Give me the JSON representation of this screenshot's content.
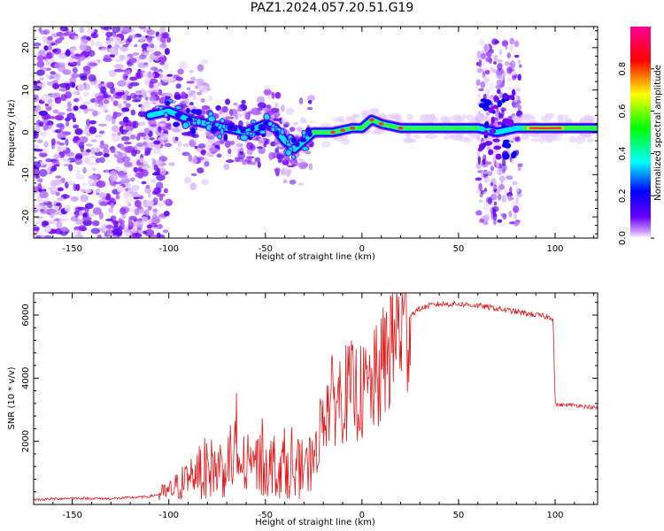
{
  "page": {
    "title": "PAZ1.2024.057.20.51.G19"
  },
  "colors": {
    "snr_line": "#e41a1c",
    "colormap": [
      "#ffffff",
      "#6600ff",
      "#0000ff",
      "#00ffff",
      "#00ff00",
      "#ffff00",
      "#ff0000",
      "#ff00cc"
    ]
  },
  "chart_data": [
    {
      "type": "heatmap",
      "title": "PAZ1.2024.057.20.51.G19",
      "xlabel": "Height of straight line (km)",
      "ylabel": "Frequency (Hz)",
      "xlim": [
        -170,
        122
      ],
      "ylim": [
        -25,
        25
      ],
      "xticks": [
        -150,
        -100,
        -50,
        0,
        50,
        100
      ],
      "yticks": [
        -20,
        -10,
        0,
        10,
        20
      ],
      "colorbar": {
        "label": "Normalized spectral amplitude",
        "range": [
          0,
          1
        ],
        "ticks": [
          "0.0",
          "0.2",
          "0.4",
          "0.6",
          "0.8"
        ]
      },
      "center_frequency_trace": [
        [
          -110,
          4
        ],
        [
          -100,
          5
        ],
        [
          -90,
          3
        ],
        [
          -80,
          2
        ],
        [
          -70,
          1
        ],
        [
          -60,
          0
        ],
        [
          -50,
          2
        ],
        [
          -45,
          1
        ],
        [
          -40,
          -2
        ],
        [
          -35,
          -4
        ],
        [
          -30,
          -2
        ],
        [
          -25,
          0
        ],
        [
          -15,
          0
        ],
        [
          -5,
          1
        ],
        [
          0,
          1
        ],
        [
          5,
          3
        ],
        [
          10,
          2
        ],
        [
          20,
          1
        ],
        [
          40,
          1
        ],
        [
          60,
          1
        ],
        [
          70,
          0
        ],
        [
          80,
          1
        ],
        [
          100,
          1
        ],
        [
          122,
          1
        ]
      ]
    },
    {
      "type": "line",
      "xlabel": "Height of straight line (km)",
      "ylabel": "SNR (10 * v/v)",
      "xlim": [
        -170,
        122
      ],
      "ylim": [
        0,
        6700
      ],
      "xticks": [
        -150,
        -100,
        -50,
        0,
        50,
        100
      ],
      "yticks": [
        2000,
        4000,
        6000
      ],
      "series": [
        {
          "x": [
            -170,
            -150,
            -130,
            -110,
            -100,
            -95,
            -90,
            -85,
            -80,
            -75,
            -70,
            -66,
            -60,
            -50,
            -40,
            -30,
            -25,
            -20,
            -15,
            -10,
            -5,
            0,
            5,
            10,
            15,
            20,
            25,
            30,
            35,
            40,
            50,
            60,
            70,
            80,
            90,
            95,
            99,
            100,
            101,
            110,
            122
          ],
          "y": [
            150,
            200,
            180,
            250,
            400,
            600,
            800,
            1000,
            1200,
            1100,
            1300,
            1500,
            1200,
            1300,
            1200,
            1100,
            1200,
            3000,
            3300,
            3500,
            3600,
            3500,
            3700,
            4200,
            5200,
            5700,
            6000,
            6200,
            6300,
            6350,
            6350,
            6300,
            6200,
            6100,
            6000,
            5950,
            5900,
            3200,
            3150,
            3150,
            3050
          ]
        }
      ]
    }
  ]
}
